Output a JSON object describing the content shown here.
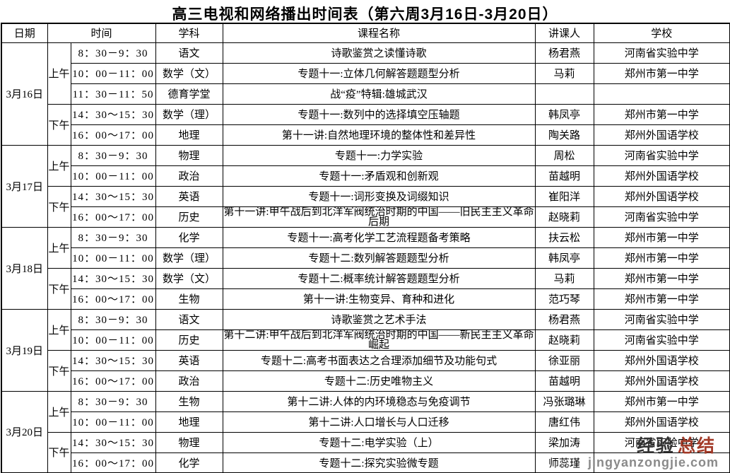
{
  "title": "高三电视和网络播出时间表（第六周3月16日-3月20日）",
  "table": {
    "headers": {
      "date": "日期",
      "time": "时间",
      "subject": "学科",
      "course": "课程名称",
      "lecturer": "讲课人",
      "school": "学校"
    },
    "days": [
      {
        "date": "3月16日",
        "sessions": [
          {
            "period": "上午",
            "rows": [
              {
                "time": "8：30－9：30",
                "subject": "语文",
                "course": "诗歌鉴赏之读懂诗歌",
                "lecturer": "杨君燕",
                "school": "河南省实验中学"
              },
              {
                "time": "10：00－11：00",
                "subject": "数学（文）",
                "course": "专题十一:立体几何解答题题型分析",
                "lecturer": "马莉",
                "school": "郑州市第一中学"
              },
              {
                "time": "11：30－11：50",
                "subject": "德育学堂",
                "course": "战“疫”特辑:雄城武汉",
                "lecturer": "",
                "school": ""
              }
            ]
          },
          {
            "period": "下午",
            "rows": [
              {
                "time": "14：30～15：30",
                "subject": "数学（理）",
                "course": "专题十一:数列中的选择填空压轴题",
                "lecturer": "韩凤亭",
                "school": "郑州市第一中学"
              },
              {
                "time": "16：00～17：00",
                "subject": "地理",
                "course": "第十一讲:自然地理环境的整体性和差异性",
                "lecturer": "陶关路",
                "school": "郑州外国语学校"
              }
            ]
          }
        ]
      },
      {
        "date": "3月17日",
        "sessions": [
          {
            "period": "上午",
            "rows": [
              {
                "time": "8：30－9：30",
                "subject": "物理",
                "course": "专题十一:力学实验",
                "lecturer": "周松",
                "school": "河南省实验中学"
              },
              {
                "time": "10：00－11：00",
                "subject": "政治",
                "course": "专题十一:矛盾观和创新观",
                "lecturer": "苗越明",
                "school": "郑州外国语学校"
              }
            ]
          },
          {
            "period": "下午",
            "rows": [
              {
                "time": "14：30～15：30",
                "subject": "英语",
                "course": "专题十一:词形变换及词缀知识",
                "lecturer": "崔阳洋",
                "school": "郑州外国语学校"
              },
              {
                "time": "16：00～17：00",
                "subject": "历史",
                "course": "第十一讲:甲午战后到北洋军阀统治时期的中国——旧民主主义革命后期",
                "lecturer": "赵晓莉",
                "school": "河南省实验中学"
              }
            ]
          }
        ]
      },
      {
        "date": "3月18日",
        "sessions": [
          {
            "period": "上午",
            "rows": [
              {
                "time": "8：30－9：30",
                "subject": "化学",
                "course": "专题十一:高考化学工艺流程题备考策略",
                "lecturer": "扶云松",
                "school": "郑州市第一中学"
              },
              {
                "time": "10：00－11：00",
                "subject": "数学（理）",
                "course": "专题十二:数列解答题题型分析",
                "lecturer": "韩凤亭",
                "school": "郑州市第一中学"
              }
            ]
          },
          {
            "period": "下午",
            "rows": [
              {
                "time": "14：30～15：30",
                "subject": "数学（文）",
                "course": "专题十二:概率统计解答题题型分析",
                "lecturer": "马莉",
                "school": "郑州市第一中学"
              },
              {
                "time": "16：00～17：00",
                "subject": "生物",
                "course": "第十一讲:生物变异、育种和进化",
                "lecturer": "范巧琴",
                "school": "郑州市第一中学"
              }
            ]
          }
        ]
      },
      {
        "date": "3月19日",
        "sessions": [
          {
            "period": "上午",
            "rows": [
              {
                "time": "8：30－9：30",
                "subject": "语文",
                "course": "诗歌鉴赏之艺术手法",
                "lecturer": "杨君燕",
                "school": "河南省实验中学"
              },
              {
                "time": "10：00－11：00",
                "subject": "历史",
                "course": "第十二讲:甲午战后到北洋军阀统治时期的中国——新民主主义革命崛起",
                "lecturer": "赵晓莉",
                "school": "河南省实验中学"
              }
            ]
          },
          {
            "period": "下午",
            "rows": [
              {
                "time": "14：30～15：30",
                "subject": "英语",
                "course": "专题十二:高考书面表达之合理添加细节及功能句式",
                "lecturer": "徐亚丽",
                "school": "郑州外国语学校"
              },
              {
                "time": "16：00～17：00",
                "subject": "政治",
                "course": "专题十二:历史唯物主义",
                "lecturer": "苗越明",
                "school": "郑州外国语学校"
              }
            ]
          }
        ]
      },
      {
        "date": "3月20日",
        "sessions": [
          {
            "period": "上午",
            "rows": [
              {
                "time": "8：30－9：30",
                "subject": "生物",
                "course": "第十二讲:人体的内环境稳态与免疫调节",
                "lecturer": "冯张璐琳",
                "school": "郑州市第一中学"
              },
              {
                "time": "10：00－11：00",
                "subject": "地理",
                "course": "第十二讲:人口增长与人口迁移",
                "lecturer": "唐红伟",
                "school": "郑州外国语学校"
              }
            ]
          },
          {
            "period": "下午",
            "rows": [
              {
                "time": "14：30～15：30",
                "subject": "物理",
                "course": "专题十二:电学实验（上）",
                "lecturer": "梁加涛",
                "school": "河南省实验中学"
              },
              {
                "time": "16：00～17：00",
                "subject": "化学",
                "course": "专题十二:探究实验微专题",
                "lecturer": "师蕊瑾",
                "school": ""
              }
            ]
          }
        ]
      }
    ]
  },
  "watermark": {
    "text_dark": "经验",
    "text_red": "总结",
    "url": "jingyanzongjie.com",
    "dark_color": "#333333",
    "red_color": "#a23a28",
    "url_color": "#8a8a8a"
  }
}
